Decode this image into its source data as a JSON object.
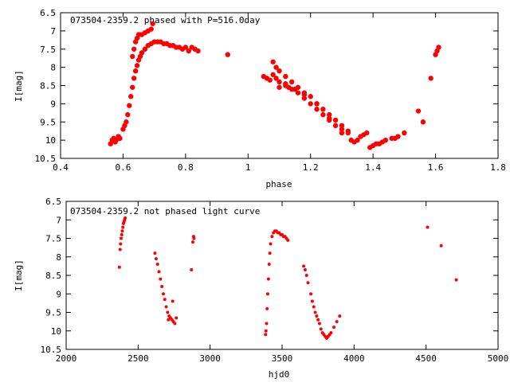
{
  "chart_data": [
    {
      "type": "scatter",
      "title": "073504-2359.2  phased with P=516.0day",
      "xlabel": "phase",
      "ylabel": "I[mag]",
      "xlim": [
        0.4,
        1.8
      ],
      "ylim": [
        10.5,
        6.5
      ],
      "y_inverted": true,
      "x_ticks": [
        "0.4",
        "0.6",
        "0.8",
        "1",
        "1.2",
        "1.4",
        "1.6",
        "1.8"
      ],
      "y_ticks": [
        "6.5",
        "7",
        "7.5",
        "8",
        "8.5",
        "9",
        "9.5",
        "10",
        "10.5"
      ],
      "grid": false,
      "marker_color": "#ff0000",
      "series": [
        {
          "x": [
            0.56,
            0.565,
            0.57,
            0.575,
            0.58,
            0.585,
            0.59,
            0.6,
            0.605,
            0.61,
            0.615,
            0.62,
            0.625,
            0.63,
            0.635,
            0.64,
            0.645,
            0.65,
            0.655,
            0.66,
            0.67,
            0.68,
            0.69,
            0.7,
            0.71,
            0.72,
            0.73,
            0.74,
            0.75,
            0.76,
            0.77,
            0.78,
            0.79,
            0.8,
            0.81,
            0.82,
            0.83,
            0.84,
            0.63,
            0.635,
            0.64,
            0.645,
            0.65,
            0.66,
            0.67,
            0.68,
            0.69,
            0.695,
            0.935,
            1.05,
            1.06,
            1.07,
            1.08,
            1.09,
            1.1,
            1.12,
            1.14,
            1.16,
            1.18,
            1.2,
            1.22,
            1.24,
            1.26,
            1.28,
            1.3,
            1.32,
            1.08,
            1.09,
            1.1,
            1.12,
            1.14,
            1.16,
            1.18,
            1.2,
            1.22,
            1.24,
            1.26,
            1.28,
            1.3,
            1.32,
            1.1,
            1.12,
            1.13,
            1.15,
            1.18,
            1.22,
            1.26,
            1.3,
            1.33,
            1.34,
            1.35,
            1.36,
            1.37,
            1.38,
            1.39,
            1.4,
            1.41,
            1.42,
            1.43,
            1.44,
            1.46,
            1.47,
            1.48,
            1.5,
            1.545,
            1.56,
            1.585,
            1.6,
            1.605,
            1.61
          ],
          "y": [
            10.1,
            10.0,
            9.95,
            10.05,
            9.98,
            9.9,
            9.95,
            9.7,
            9.6,
            9.5,
            9.3,
            9.05,
            8.8,
            8.55,
            8.3,
            8.1,
            7.95,
            7.8,
            7.7,
            7.6,
            7.5,
            7.4,
            7.35,
            7.3,
            7.3,
            7.3,
            7.35,
            7.35,
            7.4,
            7.4,
            7.45,
            7.45,
            7.5,
            7.45,
            7.55,
            7.45,
            7.5,
            7.55,
            7.7,
            7.5,
            7.3,
            7.2,
            7.1,
            7.1,
            7.05,
            7.0,
            6.95,
            6.8,
            7.65,
            8.25,
            8.3,
            8.35,
            8.2,
            8.3,
            8.4,
            8.5,
            8.6,
            8.7,
            8.85,
            9.0,
            9.15,
            9.3,
            9.45,
            9.6,
            9.7,
            9.8,
            7.85,
            8.0,
            8.1,
            8.25,
            8.4,
            8.55,
            8.7,
            8.8,
            9.0,
            9.15,
            9.3,
            9.45,
            9.6,
            9.75,
            8.55,
            8.45,
            8.55,
            8.6,
            8.75,
            9.0,
            9.4,
            9.8,
            10.0,
            10.05,
            10.0,
            9.9,
            9.85,
            9.8,
            10.2,
            10.15,
            10.1,
            10.1,
            10.05,
            10.0,
            9.95,
            9.95,
            9.9,
            9.8,
            9.2,
            9.5,
            8.3,
            7.65,
            7.55,
            7.45
          ]
        }
      ]
    },
    {
      "type": "scatter",
      "title": "073504-2359.2 not phased light curve",
      "xlabel": "hjd0",
      "ylabel": "I[mag]",
      "xlim": [
        2000,
        5000
      ],
      "ylim": [
        10.5,
        6.5
      ],
      "y_inverted": true,
      "x_ticks": [
        "2000",
        "2500",
        "3000",
        "3500",
        "4000",
        "4500",
        "5000"
      ],
      "y_ticks": [
        "6.5",
        "7",
        "7.5",
        "8",
        "8.5",
        "9",
        "9.5",
        "10",
        "10.5"
      ],
      "grid": false,
      "marker_color": "#ff0000",
      "series": [
        {
          "x": [
            2375,
            2378,
            2382,
            2386,
            2390,
            2394,
            2398,
            2402,
            2406,
            2410,
            2370,
            2617,
            2625,
            2635,
            2645,
            2655,
            2665,
            2675,
            2685,
            2695,
            2705,
            2715,
            2725,
            2735,
            2745,
            2755,
            2765,
            2710,
            2740,
            2870,
            2880,
            2885,
            2888,
            3385,
            3388,
            3392,
            3396,
            3400,
            3405,
            3410,
            3415,
            3420,
            3430,
            3440,
            3450,
            3460,
            3470,
            3480,
            3490,
            3500,
            3510,
            3520,
            3530,
            3540,
            3650,
            3660,
            3670,
            3680,
            3700,
            3710,
            3720,
            3730,
            3740,
            3750,
            3760,
            3770,
            3780,
            3790,
            3800,
            3810,
            3820,
            3830,
            3840,
            3860,
            3880,
            3900,
            4510,
            4605,
            4710
          ],
          "y": [
            7.8,
            7.65,
            7.5,
            7.4,
            7.3,
            7.2,
            7.1,
            7.05,
            7.0,
            6.95,
            8.28,
            7.9,
            8.05,
            8.2,
            8.4,
            8.6,
            8.8,
            9.0,
            9.15,
            9.35,
            9.5,
            9.6,
            9.65,
            9.7,
            9.75,
            9.8,
            9.65,
            9.7,
            9.2,
            8.35,
            7.6,
            7.45,
            7.5,
            10.1,
            10.0,
            9.8,
            9.4,
            9.0,
            8.6,
            8.2,
            7.9,
            7.65,
            7.45,
            7.35,
            7.3,
            7.3,
            7.35,
            7.35,
            7.4,
            7.4,
            7.45,
            7.45,
            7.5,
            7.55,
            8.25,
            8.35,
            8.5,
            8.7,
            9.0,
            9.2,
            9.35,
            9.5,
            9.6,
            9.7,
            9.8,
            9.95,
            10.05,
            10.1,
            10.15,
            10.2,
            10.15,
            10.1,
            10.05,
            9.9,
            9.75,
            9.6,
            7.2,
            7.7,
            8.62
          ]
        }
      ]
    }
  ]
}
